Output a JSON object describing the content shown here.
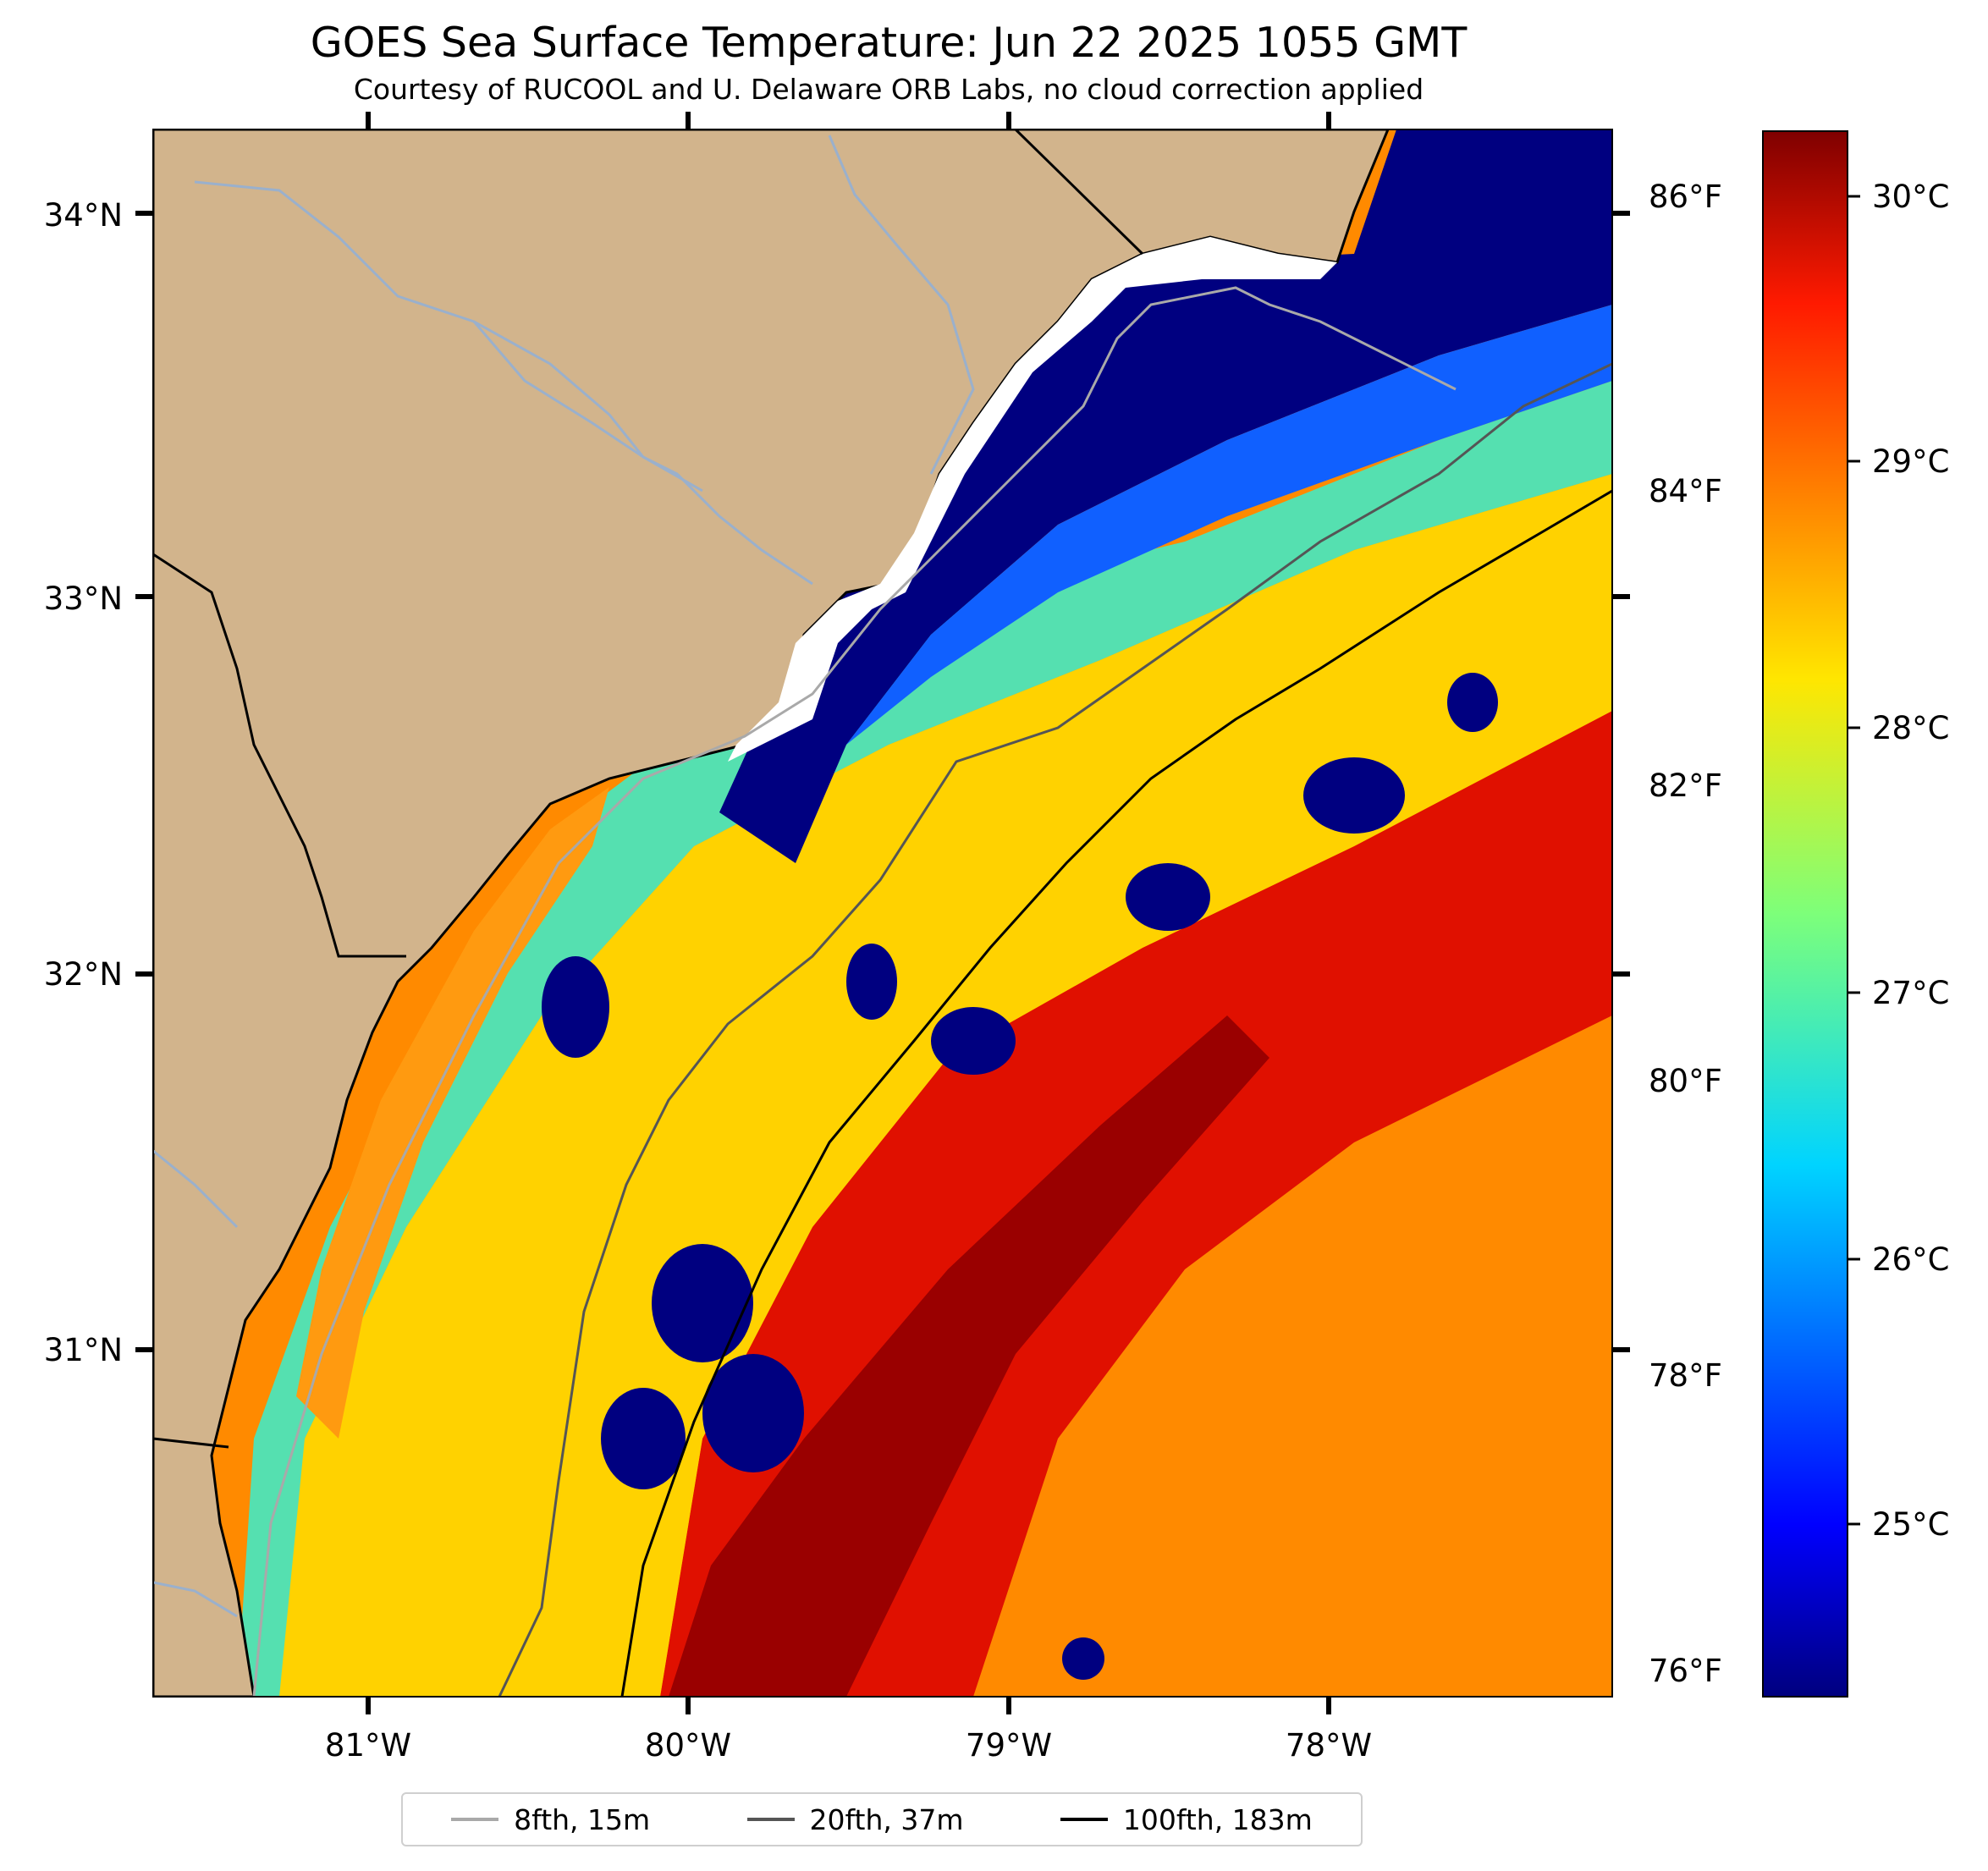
{
  "title": "GOES Sea Surface Temperature: Jun 22 2025 1055 GMT",
  "subtitle": "Courtesy of RUCOOL and U. Delaware ORB Labs, no cloud correction applied",
  "map": {
    "lat_labels": [
      "34°N",
      "33°N",
      "32°N",
      "31°N"
    ],
    "lon_labels": [
      "81°W",
      "80°W",
      "79°W",
      "78°W"
    ],
    "lat_range": [
      30.1,
      34.2
    ],
    "lon_range": [
      -81.65,
      -77.1
    ],
    "land_color": "#d2b48c",
    "ocean_colors": {
      "cold": "#000080",
      "warm": "#ff3000",
      "hot": "#8b0000"
    }
  },
  "fahrenheit_axis": [
    "86°F",
    "84°F",
    "82°F",
    "80°F",
    "78°F",
    "76°F"
  ],
  "colorbar": {
    "labels": [
      "30°C",
      "29°C",
      "28°C",
      "27°C",
      "26°C",
      "25°C"
    ],
    "colormap": "jet"
  },
  "legend": [
    {
      "label": "8fth, 15m",
      "color": "#a9a9a9"
    },
    {
      "label": "20fth, 37m",
      "color": "#555555"
    },
    {
      "label": "100fth, 183m",
      "color": "#000000"
    }
  ]
}
